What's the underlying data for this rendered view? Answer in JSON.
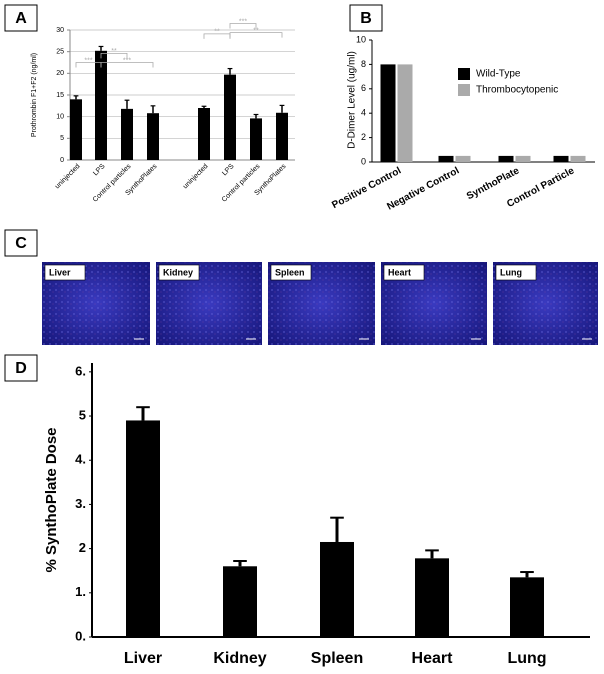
{
  "chart_data": [
    {
      "type": "bar",
      "panel": "A",
      "y_label": "Prothrombin F1+F2 (ng/ml)",
      "categories": [
        "uninjected",
        "LPS",
        "Control particles",
        "SynthoPlates",
        "uninjected",
        "LPS",
        "Control particles",
        "SynthoPlates"
      ],
      "values": [
        14,
        25.2,
        11.8,
        10.8,
        12,
        19.7,
        9.6,
        10.9
      ],
      "errors": [
        0.8,
        1,
        2,
        1.7,
        0.4,
        1.4,
        0.9,
        1.7
      ],
      "color": "#000000",
      "annotations": [
        "***",
        "**",
        "***",
        "**",
        "***",
        "**"
      ],
      "ylim": [
        0,
        30
      ],
      "yticks": [
        0,
        5,
        10,
        15,
        20,
        25,
        30
      ],
      "grid": true
    },
    {
      "type": "bar",
      "panel": "B",
      "y_label": "D-Dimer Level (ug/ml)",
      "categories": [
        "Positive Control",
        "Negative Control",
        "SynthoPlate",
        "Control Particle"
      ],
      "series": [
        {
          "name": "Wild-Type",
          "color": "#000000",
          "values": [
            8,
            0.5,
            0.5,
            0.5
          ]
        },
        {
          "name": "Thrombocytopenic",
          "color": "#aaaaaa",
          "values": [
            8,
            0.5,
            0.5,
            0.5
          ]
        }
      ],
      "ylim": [
        0,
        10
      ],
      "yticks": [
        0,
        2,
        4,
        6,
        8,
        10
      ],
      "grid": false,
      "legend": "top-right"
    },
    {
      "type": "bar",
      "panel": "D",
      "y_label": "% SynthoPlate Dose",
      "categories": [
        "Liver",
        "Kidney",
        "Spleen",
        "Heart",
        "Lung"
      ],
      "values": [
        4.9,
        1.6,
        2.15,
        1.78,
        1.35
      ],
      "errors": [
        0.3,
        0.12,
        0.55,
        0.18,
        0.12
      ],
      "color": "#000000",
      "ylim": [
        0,
        6.2
      ],
      "yticks": [
        {
          "value": 0,
          "label": "0."
        },
        {
          "value": 1,
          "label": "1."
        },
        {
          "value": 2,
          "label": "2"
        },
        {
          "value": 3,
          "label": "3."
        },
        {
          "value": 4,
          "label": "4."
        },
        {
          "value": 5,
          "label": "5"
        },
        {
          "value": 6,
          "label": "6."
        }
      ],
      "grid": false
    }
  ],
  "panel_c": {
    "panel": "C",
    "images": [
      "Liver",
      "Kidney",
      "Spleen",
      "Heart",
      "Lung"
    ]
  }
}
